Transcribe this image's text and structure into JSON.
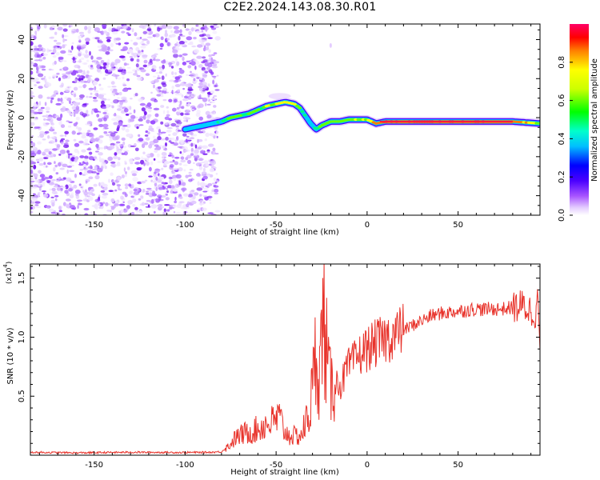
{
  "title": "C2E2.2024.143.08.30.R01",
  "colors": {
    "snr_line": "#e8332b",
    "noise_purple": "#7a1ff0",
    "colormap": [
      "#ffffff",
      "#e4ccff",
      "#b57bff",
      "#7a1ff0",
      "#4b00ff",
      "#0000ff",
      "#00bfff",
      "#00ffcc",
      "#00ff00",
      "#ccff00",
      "#ffff00",
      "#ff8000",
      "#ff0000",
      "#ff0080",
      "#ff0066"
    ]
  },
  "chart_data": [
    {
      "type": "heatmap",
      "xlabel": "Height of straight line (km)",
      "ylabel": "Frequency (Hz)",
      "xlim": [
        -185,
        95
      ],
      "ylim": [
        -50,
        48
      ],
      "xticks": [
        -150,
        -100,
        -50,
        0,
        50
      ],
      "yticks": [
        -40,
        -20,
        0,
        20,
        40
      ],
      "colorbar": {
        "label": "Normalized spectral amplitude",
        "range": [
          0,
          1
        ],
        "ticks": [
          "0.0",
          "0.2",
          "0.4",
          "0.6",
          "0.8"
        ]
      },
      "noise_region_x": [
        -185,
        -82
      ],
      "ridge": {
        "x": [
          -100,
          -95,
          -90,
          -85,
          -80,
          -75,
          -70,
          -65,
          -60,
          -55,
          -50,
          -45,
          -40,
          -37,
          -34,
          -31,
          -28,
          -25,
          -20,
          -15,
          -10,
          -5,
          0,
          5,
          10,
          20,
          40,
          60,
          80,
          95
        ],
        "y": [
          -6,
          -5,
          -4,
          -3,
          -2,
          0,
          1,
          2,
          4,
          6,
          7,
          8,
          7,
          5,
          1,
          -3,
          -6,
          -4,
          -2,
          -2,
          -1,
          -1,
          -1,
          -3,
          -2,
          -2,
          -2,
          -2,
          -2,
          -3
        ],
        "amp": [
          0.3,
          0.35,
          0.45,
          0.5,
          0.6,
          0.7,
          0.7,
          0.65,
          0.7,
          0.72,
          0.75,
          0.85,
          0.85,
          0.7,
          0.6,
          0.5,
          0.55,
          0.65,
          0.7,
          0.7,
          0.75,
          0.75,
          0.75,
          0.95,
          0.95,
          0.95,
          0.95,
          0.95,
          0.95,
          0.75
        ]
      }
    },
    {
      "type": "line",
      "xlabel": "Height of straight line (km)",
      "ylabel": "SNR (10 * v/v)",
      "yscale_label": "(x10",
      "yscale_exp": "4",
      "xlim": [
        -185,
        95
      ],
      "ylim": [
        0,
        16200
      ],
      "xticks": [
        -150,
        -100,
        -50,
        0,
        50
      ],
      "yticks": [
        5000,
        10000,
        15000
      ],
      "ytick_labels": [
        "0.5",
        "1.0",
        "1.5"
      ],
      "series": [
        {
          "x": [
            -185,
            -160,
            -130,
            -100,
            -85,
            -80,
            -76,
            -72,
            -68,
            -64,
            -60,
            -56,
            -52,
            -48,
            -46,
            -44,
            -40,
            -36,
            -32,
            -30,
            -28,
            -26,
            -24,
            -22,
            -20,
            -18,
            -16,
            -14,
            -12,
            -10,
            -8,
            -6,
            -4,
            -2,
            0,
            4,
            8,
            12,
            16,
            20,
            25,
            30,
            35,
            40,
            45,
            50,
            55,
            60,
            65,
            70,
            75,
            80,
            85,
            88,
            90,
            92,
            94,
            95
          ],
          "y": [
            250,
            200,
            250,
            230,
            250,
            300,
            800,
            1500,
            1800,
            2000,
            2200,
            2600,
            2800,
            3200,
            2200,
            1800,
            1600,
            1700,
            3500,
            5500,
            9000,
            7000,
            12000,
            8000,
            5500,
            6500,
            6000,
            6000,
            7000,
            7500,
            7800,
            8200,
            8500,
            8800,
            9000,
            9400,
            9700,
            10000,
            10300,
            10600,
            11000,
            11400,
            11800,
            12000,
            12100,
            12200,
            12300,
            12400,
            12350,
            12400,
            12400,
            12500,
            12600,
            12500,
            12200,
            12000,
            13000,
            9000
          ]
        }
      ]
    }
  ]
}
